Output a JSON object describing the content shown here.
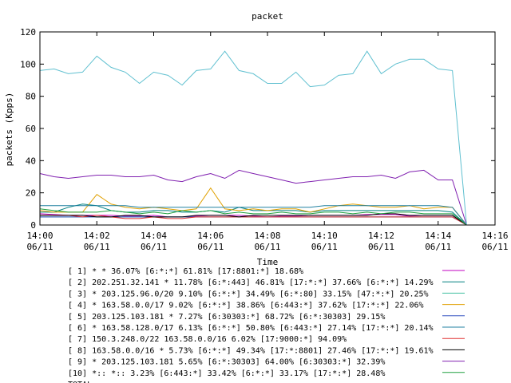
{
  "chart_data": {
    "type": "line",
    "title": "packet",
    "xlabel": "Time",
    "ylabel": "packets (Kpps)",
    "ylim": [
      0,
      120
    ],
    "yticks": [
      "0",
      "20",
      "40",
      "60",
      "80",
      "100",
      "120"
    ],
    "xticks": [
      {
        "time": "14:00",
        "date": "06/11"
      },
      {
        "time": "14:02",
        "date": "06/11"
      },
      {
        "time": "14:04",
        "date": "06/11"
      },
      {
        "time": "14:06",
        "date": "06/11"
      },
      {
        "time": "14:08",
        "date": "06/11"
      },
      {
        "time": "14:10",
        "date": "06/11"
      },
      {
        "time": "14:12",
        "date": "06/11"
      },
      {
        "time": "14:14",
        "date": "06/11"
      },
      {
        "time": "14:16",
        "date": "06/11"
      }
    ],
    "xlim": [
      "14:00",
      "14:16"
    ],
    "x": [
      "14:00",
      "14:00:30",
      "14:01",
      "14:01:30",
      "14:02",
      "14:02:30",
      "14:03",
      "14:03:30",
      "14:04",
      "14:04:30",
      "14:05",
      "14:05:30",
      "14:06",
      "14:06:30",
      "14:07",
      "14:07:30",
      "14:08",
      "14:08:30",
      "14:09",
      "14:09:30",
      "14:10",
      "14:10:30",
      "14:11",
      "14:11:30",
      "14:12",
      "14:12:30",
      "14:13",
      "14:13:30",
      "14:14",
      "14:14:30",
      "14:15"
    ],
    "grid": false,
    "legend_position": "bottom",
    "series": [
      {
        "name": "[ 1] * * 36.07%  [6:*:*] 61.81% [17:8801:*] 18.68%",
        "color": "#c000c0",
        "values": [
          7,
          6.5,
          6,
          6,
          6,
          6,
          5.5,
          5.5,
          6,
          5,
          5,
          5.5,
          6,
          6,
          6,
          5.5,
          5,
          5.5,
          5.5,
          6,
          6,
          6,
          6,
          6.5,
          6.5,
          6.5,
          5.5,
          6,
          6,
          6,
          0
        ]
      },
      {
        "name": "[ 2] 202.251.32.141 * 11.78%  [6:*:443] 46.81% [17:*:*] 37.66% [6:*:*] 14.29%",
        "color": "#008080",
        "values": [
          8,
          8,
          11,
          13,
          12,
          9,
          8,
          8,
          9,
          9,
          8,
          8,
          9,
          8,
          11,
          9,
          9,
          9,
          9,
          8,
          9,
          9,
          9,
          9,
          9,
          9,
          9,
          9,
          9,
          8,
          0
        ]
      },
      {
        "name": "[ 3] * 203.125.96.0/20 9.10%  [6:*:*] 34.49% [6:*:80] 33.15% [47:*:*] 20.25%",
        "color": "#40c0a0",
        "values": [
          5,
          5,
          5,
          5,
          5,
          5,
          5,
          5,
          5,
          5,
          5,
          5,
          5,
          5,
          5,
          5,
          5,
          5,
          5,
          5,
          5,
          5,
          5,
          5,
          5,
          5,
          5,
          5,
          5,
          5,
          0
        ]
      },
      {
        "name": "[ 4] * 163.58.0.0/17 9.02%  [6:*:*] 38.86% [6:443:*] 37.62% [17:*:*] 22.06%",
        "color": "#e0a000",
        "values": [
          9,
          8,
          8,
          8,
          19,
          13,
          11,
          10,
          11,
          10,
          9,
          10,
          23,
          10,
          9,
          10,
          9,
          10,
          10,
          8,
          10,
          12,
          13,
          12,
          11,
          11,
          12,
          10,
          11,
          11,
          0
        ]
      },
      {
        "name": "[ 5] 203.125.103.181 * 7.27%  [6:30303:*] 68.72% [6:*:30303] 29.15%",
        "color": "#3050c0",
        "values": [
          5,
          5,
          5,
          5,
          5,
          5,
          5,
          5,
          5,
          5,
          5,
          5,
          5,
          5,
          5,
          5,
          5,
          5,
          5,
          5,
          5,
          5,
          5,
          5,
          5,
          5,
          5,
          5,
          5,
          5,
          0
        ]
      },
      {
        "name": "[ 6] * 163.58.128.0/17 6.13%  [6:*:*] 50.80% [6:443:*] 27.14% [17:*:*] 20.14%",
        "color": "#2080a0",
        "values": [
          12,
          12,
          12,
          12,
          12,
          12,
          12,
          11,
          11,
          11,
          11,
          11,
          11,
          11,
          11,
          11,
          11,
          11,
          11,
          11,
          12,
          12,
          12,
          12,
          12,
          12,
          12,
          12,
          12,
          11,
          0
        ]
      },
      {
        "name": "[ 7] 150.3.248.0/22 163.58.0.0/16 6.02%  [17:9000:*] 94.09%",
        "color": "#e03030",
        "values": [
          6,
          6,
          6,
          5,
          6,
          5,
          4,
          4,
          5,
          4,
          4,
          5,
          5,
          5,
          5,
          5,
          5,
          5,
          5,
          5,
          5,
          5,
          5,
          5,
          5,
          5,
          5,
          5,
          5,
          5,
          0
        ]
      },
      {
        "name": "[ 8] 163.58.0.0/16 * 5.73%  [6:*:*] 49.34% [17:*:8801] 27.46% [17:*:*] 19.61%",
        "color": "#000000",
        "values": [
          6,
          6,
          6,
          6,
          5,
          5,
          6,
          6,
          5,
          5,
          5,
          6,
          6,
          6,
          5,
          6,
          6,
          6,
          6,
          6,
          6,
          6,
          6,
          6,
          7,
          7,
          6,
          6,
          6,
          6,
          0
        ]
      },
      {
        "name": "[ 9] * 203.125.103.181 5.65%  [6:*:30303] 64.00% [6:30303:*] 32.39%",
        "color": "#8020b0",
        "values": [
          32,
          30,
          29,
          30,
          31,
          31,
          30,
          30,
          31,
          28,
          27,
          30,
          32,
          29,
          34,
          32,
          30,
          28,
          26,
          27,
          28,
          29,
          30,
          30,
          31,
          29,
          33,
          34,
          28,
          28,
          0
        ]
      },
      {
        "name": "[10] *:: *:: 3.23%  [6:443:*] 33.42% [6:*:*] 33.17% [17:*:*] 28.48%",
        "color": "#20a040",
        "values": [
          10,
          9,
          8,
          8,
          8,
          9,
          8,
          7,
          8,
          7,
          9,
          8,
          9,
          7,
          8,
          7,
          7,
          8,
          7,
          7,
          8,
          8,
          7,
          8,
          7,
          8,
          8,
          7,
          7,
          7,
          0
        ]
      },
      {
        "name": "TOTAL",
        "color": "#60c0d0",
        "values": [
          96,
          97,
          94,
          95,
          105,
          98,
          95,
          88,
          95,
          93,
          87,
          96,
          97,
          108,
          96,
          94,
          88,
          88,
          95,
          86,
          87,
          93,
          94,
          108,
          94,
          100,
          103,
          103,
          97,
          96,
          0
        ]
      }
    ]
  }
}
